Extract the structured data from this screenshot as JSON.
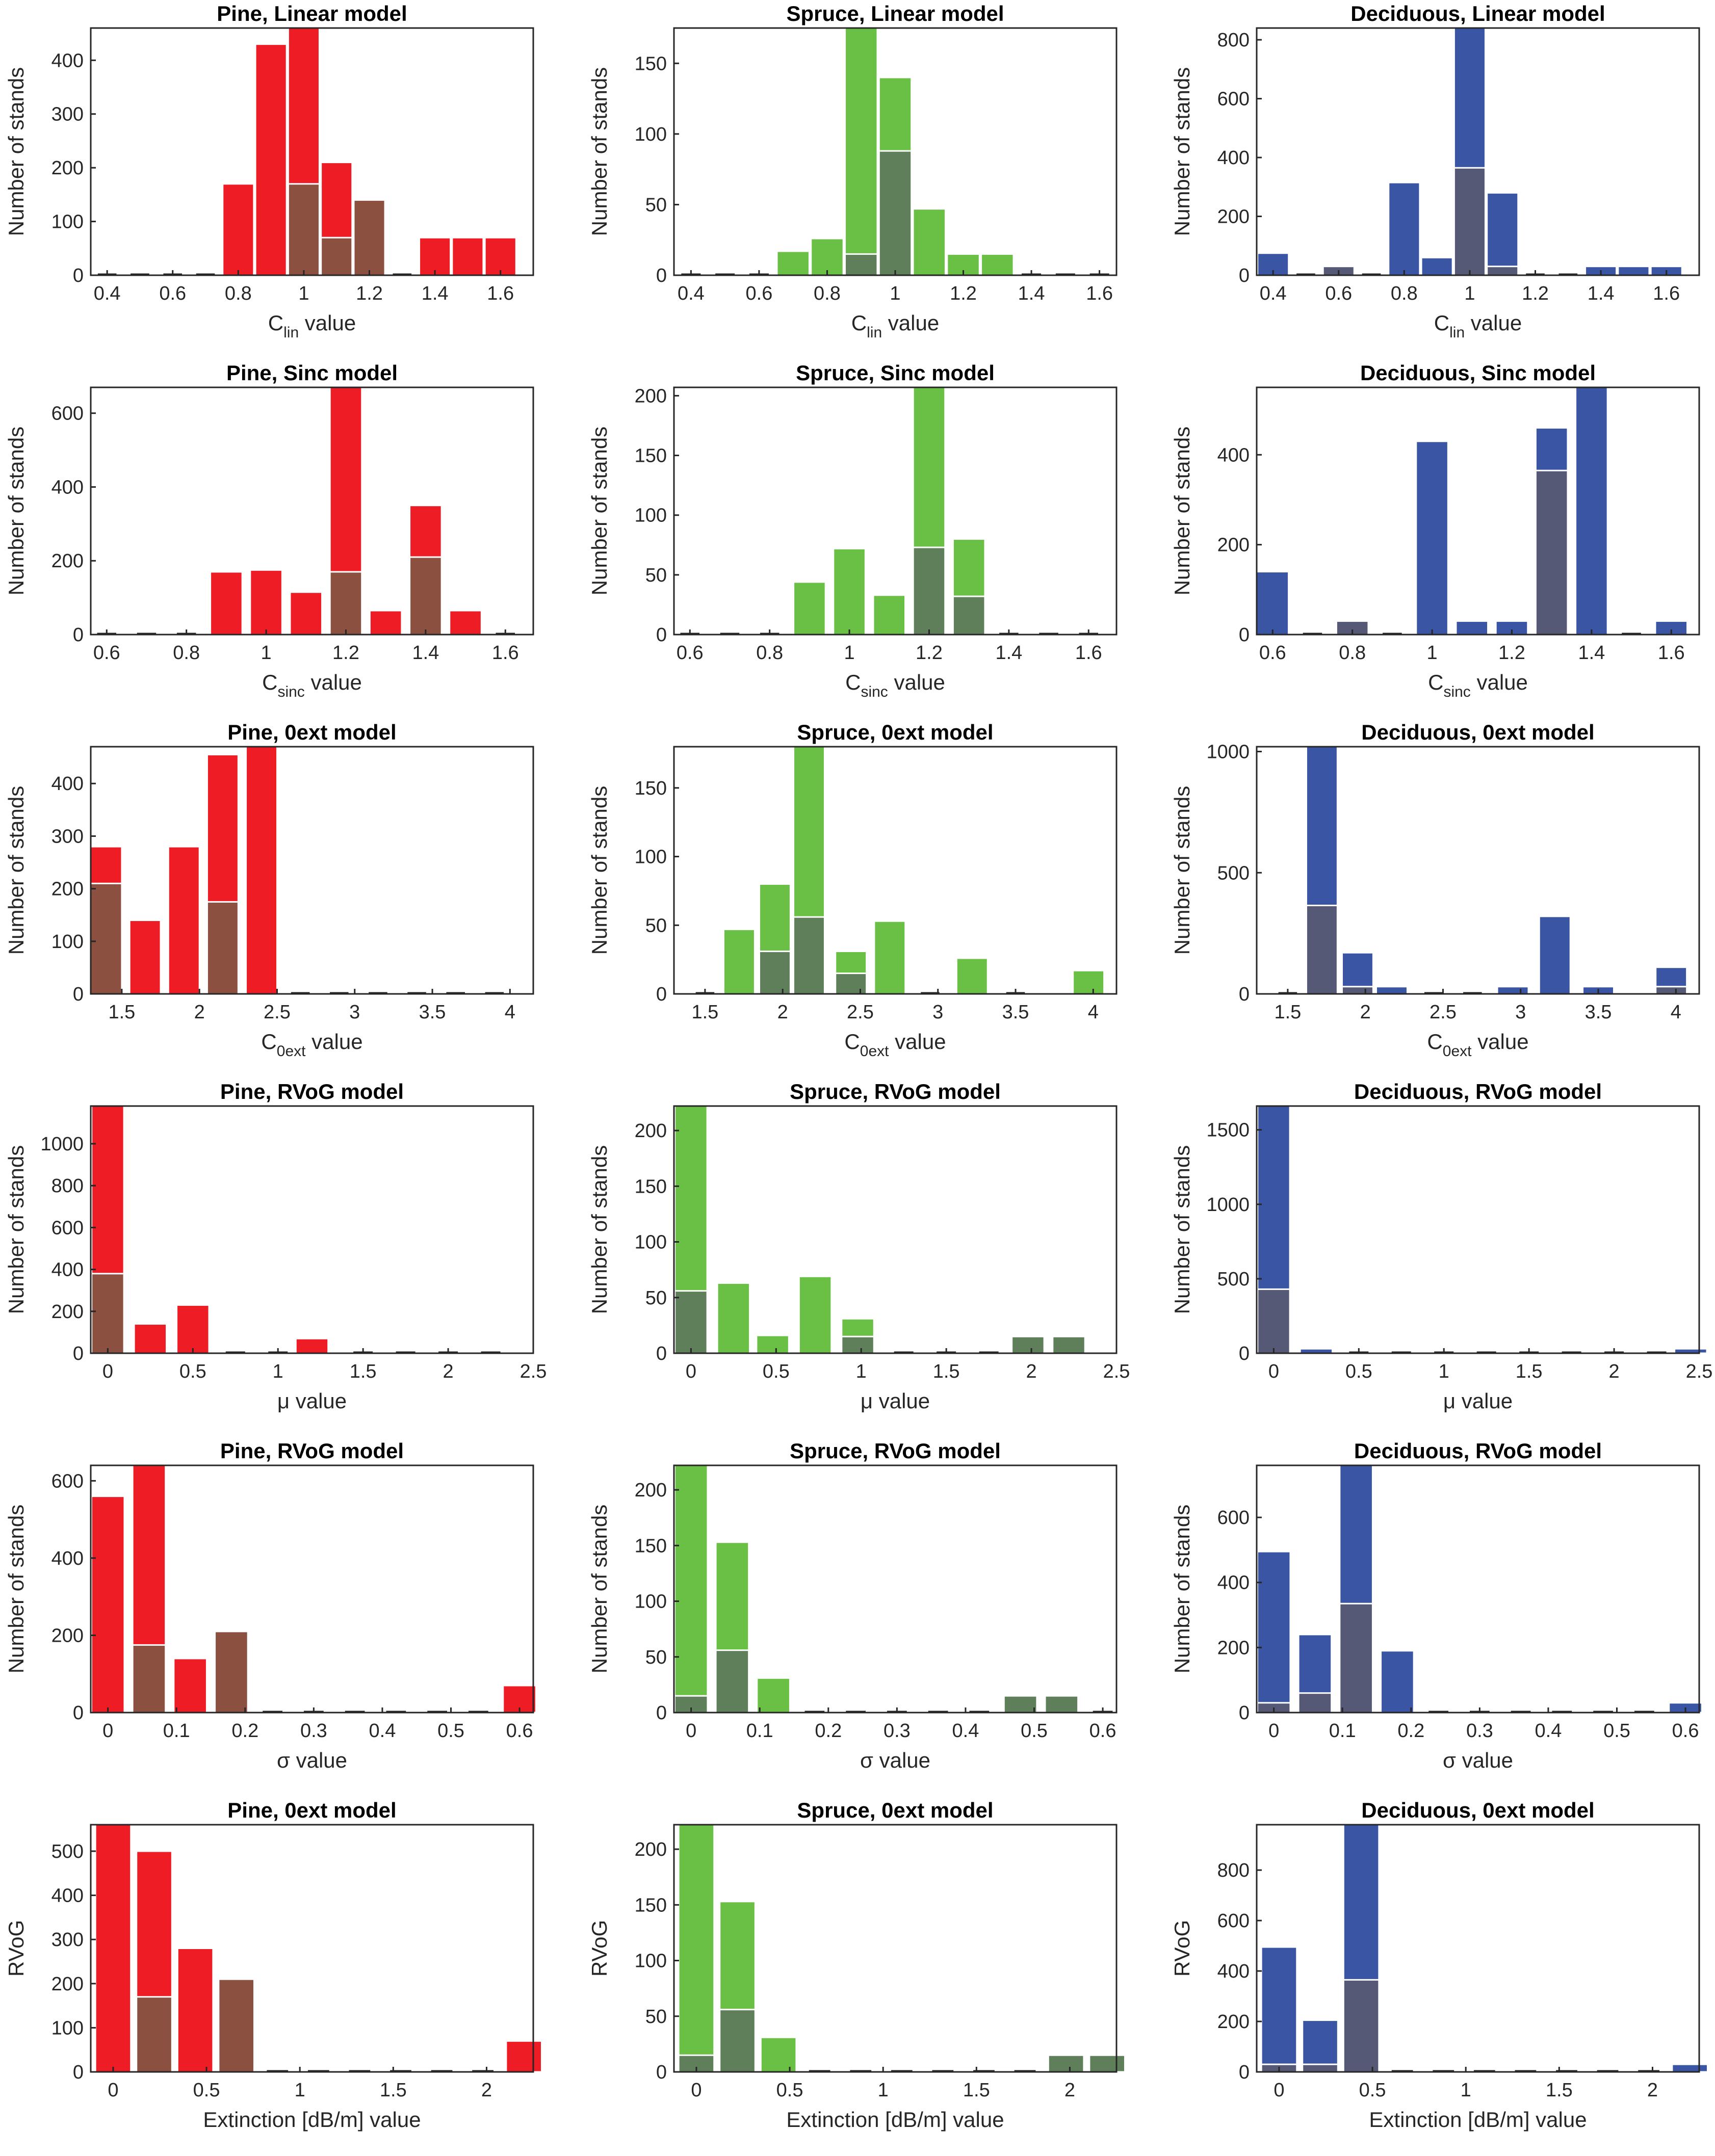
{
  "chart_data": [
    {
      "type": "bar",
      "title": "Pine, Linear model",
      "xlabel": "C",
      "xlabel_sub": "lin",
      "xlabel_suffix": " value",
      "ylabel": "Number of stands",
      "xlim": [
        0.35,
        1.7
      ],
      "ylim": [
        0,
        460
      ],
      "xticks": [
        0.4,
        0.6,
        0.8,
        1,
        1.2,
        1.4,
        1.6
      ],
      "yticks": [
        0,
        100,
        200,
        300,
        400
      ],
      "colors": {
        "total": "#ee1c25",
        "subset": "#8b5040"
      },
      "bar_width": 0.095,
      "x": [
        0.4,
        0.5,
        0.6,
        0.7,
        0.8,
        0.9,
        1.0,
        1.1,
        1.2,
        1.3,
        1.4,
        1.5,
        1.6
      ],
      "total": [
        0,
        0,
        0,
        0,
        170,
        430,
        460,
        210,
        0,
        0,
        70,
        70,
        70
      ],
      "subset": [
        0,
        0,
        0,
        0,
        0,
        0,
        170,
        70,
        140,
        0,
        0,
        0,
        0
      ]
    },
    {
      "type": "bar",
      "title": "Spruce, Linear model",
      "xlabel": "C",
      "xlabel_sub": "lin",
      "xlabel_suffix": " value",
      "ylabel": "Number of stands",
      "xlim": [
        0.35,
        1.65
      ],
      "ylim": [
        0,
        175
      ],
      "xticks": [
        0.4,
        0.6,
        0.8,
        1,
        1.2,
        1.4,
        1.6
      ],
      "yticks": [
        0,
        50,
        100,
        150
      ],
      "colors": {
        "total": "#6abf45",
        "subset": "#5e7f5a"
      },
      "bar_width": 0.095,
      "x": [
        0.4,
        0.5,
        0.6,
        0.7,
        0.8,
        0.9,
        1.0,
        1.1,
        1.2,
        1.3,
        1.4,
        1.5,
        1.6
      ],
      "total": [
        0,
        0,
        0,
        17,
        26,
        175,
        140,
        47,
        15,
        15,
        0,
        0,
        0
      ],
      "subset": [
        0,
        0,
        0,
        0,
        0,
        15,
        88,
        0,
        0,
        0,
        0,
        0,
        0
      ]
    },
    {
      "type": "bar",
      "title": "Deciduous, Linear model",
      "xlabel": "C",
      "xlabel_sub": "lin",
      "xlabel_suffix": " value",
      "ylabel": "Number of stands",
      "xlim": [
        0.35,
        1.7
      ],
      "ylim": [
        0,
        840
      ],
      "xticks": [
        0.4,
        0.6,
        0.8,
        1,
        1.2,
        1.4,
        1.6
      ],
      "yticks": [
        0,
        200,
        400,
        600,
        800
      ],
      "colors": {
        "total": "#3a55a4",
        "subset": "#555976"
      },
      "bar_width": 0.095,
      "x": [
        0.4,
        0.5,
        0.6,
        0.7,
        0.8,
        0.9,
        1.0,
        1.1,
        1.2,
        1.3,
        1.4,
        1.5,
        1.6
      ],
      "total": [
        75,
        0,
        0,
        0,
        315,
        60,
        840,
        280,
        0,
        0,
        30,
        30,
        30
      ],
      "subset": [
        0,
        0,
        30,
        0,
        0,
        0,
        365,
        30,
        0,
        0,
        0,
        0,
        0
      ]
    },
    {
      "type": "bar",
      "title": "Pine, Sinc model",
      "xlabel": "C",
      "xlabel_sub": "sinc",
      "xlabel_suffix": " value",
      "ylabel": "Number of stands",
      "xlim": [
        0.56,
        1.67
      ],
      "ylim": [
        0,
        670
      ],
      "xticks": [
        0.6,
        0.8,
        1,
        1.2,
        1.4,
        1.6
      ],
      "yticks": [
        0,
        200,
        400,
        600
      ],
      "colors": {
        "total": "#ee1c25",
        "subset": "#8b5040"
      },
      "bar_width": 0.08,
      "x": [
        0.6,
        0.7,
        0.8,
        0.9,
        1.0,
        1.1,
        1.2,
        1.3,
        1.4,
        1.5,
        1.6
      ],
      "total": [
        0,
        0,
        0,
        170,
        175,
        115,
        670,
        65,
        350,
        65,
        0
      ],
      "subset": [
        0,
        0,
        0,
        0,
        0,
        0,
        170,
        0,
        210,
        0,
        0
      ]
    },
    {
      "type": "bar",
      "title": "Spruce, Sinc model",
      "xlabel": "C",
      "xlabel_sub": "sinc",
      "xlabel_suffix": " value",
      "ylabel": "Number of stands",
      "xlim": [
        0.56,
        1.67
      ],
      "ylim": [
        0,
        207
      ],
      "xticks": [
        0.6,
        0.8,
        1,
        1.2,
        1.4,
        1.6
      ],
      "yticks": [
        0,
        50,
        100,
        150,
        200
      ],
      "colors": {
        "total": "#6abf45",
        "subset": "#5e7f5a"
      },
      "bar_width": 0.08,
      "x": [
        0.6,
        0.7,
        0.8,
        0.9,
        1.0,
        1.1,
        1.2,
        1.3,
        1.4,
        1.5,
        1.6
      ],
      "total": [
        0,
        0,
        0,
        44,
        72,
        33,
        207,
        80,
        0,
        0,
        0
      ],
      "subset": [
        0,
        0,
        0,
        0,
        0,
        0,
        73,
        32,
        0,
        0,
        0
      ]
    },
    {
      "type": "bar",
      "title": "Deciduous, Sinc model",
      "xlabel": "C",
      "xlabel_sub": "sinc",
      "xlabel_suffix": " value",
      "ylabel": "Number of stands",
      "xlim": [
        0.56,
        1.67
      ],
      "ylim": [
        0,
        550
      ],
      "xticks": [
        0.6,
        0.8,
        1,
        1.2,
        1.4,
        1.6
      ],
      "yticks": [
        0,
        200,
        400
      ],
      "colors": {
        "total": "#3a55a4",
        "subset": "#555976"
      },
      "bar_width": 0.08,
      "x": [
        0.6,
        0.7,
        0.8,
        0.9,
        1.0,
        1.1,
        1.2,
        1.3,
        1.4,
        1.5,
        1.6
      ],
      "total": [
        140,
        0,
        0,
        0,
        430,
        30,
        30,
        460,
        550,
        0,
        30
      ],
      "subset": [
        0,
        0,
        30,
        0,
        0,
        0,
        0,
        365,
        0,
        0,
        0
      ]
    },
    {
      "type": "bar",
      "title": "Pine, 0ext model",
      "xlabel": "C",
      "xlabel_sub": "0ext",
      "xlabel_suffix": " value",
      "ylabel": "Number of stands",
      "xlim": [
        1.3,
        4.15
      ],
      "ylim": [
        0,
        470
      ],
      "xticks": [
        1.5,
        2,
        2.5,
        3,
        3.5,
        4
      ],
      "yticks": [
        0,
        100,
        200,
        300,
        400
      ],
      "colors": {
        "total": "#ee1c25",
        "subset": "#8b5040"
      },
      "bar_width": 0.2,
      "x": [
        1.4,
        1.65,
        1.9,
        2.15,
        2.4,
        2.65,
        2.9,
        3.15,
        3.4,
        3.65,
        3.9
      ],
      "total": [
        280,
        140,
        280,
        455,
        470,
        0,
        0,
        0,
        0,
        0,
        0
      ],
      "subset": [
        210,
        0,
        0,
        175,
        0,
        0,
        0,
        0,
        0,
        0,
        0
      ]
    },
    {
      "type": "bar",
      "title": "Spruce, 0ext model",
      "xlabel": "C",
      "xlabel_sub": "0ext",
      "xlabel_suffix": " value",
      "ylabel": "Number of stands",
      "xlim": [
        1.3,
        4.15
      ],
      "ylim": [
        0,
        180
      ],
      "xticks": [
        1.5,
        2,
        2.5,
        3,
        3.5,
        4
      ],
      "yticks": [
        0,
        50,
        100,
        150
      ],
      "colors": {
        "total": "#6abf45",
        "subset": "#5e7f5a"
      },
      "bar_width": 0.2,
      "x": [
        1.5,
        1.72,
        1.95,
        2.17,
        2.44,
        2.69,
        2.95,
        3.22,
        3.5,
        3.97
      ],
      "total": [
        0,
        47,
        80,
        180,
        31,
        53,
        0,
        26,
        0,
        17
      ],
      "subset": [
        0,
        0,
        31,
        56,
        15,
        0,
        0,
        0,
        0,
        0
      ]
    },
    {
      "type": "bar",
      "title": "Deciduous, 0ext model",
      "xlabel": "C",
      "xlabel_sub": "0ext",
      "xlabel_suffix": " value",
      "ylabel": "Number of stands",
      "xlim": [
        1.3,
        4.15
      ],
      "ylim": [
        0,
        1020
      ],
      "xticks": [
        1.5,
        2,
        2.5,
        3,
        3.5,
        4
      ],
      "yticks": [
        0,
        500,
        1000
      ],
      "colors": {
        "total": "#3a55a4",
        "subset": "#555976"
      },
      "bar_width": 0.2,
      "x": [
        1.5,
        1.72,
        1.95,
        2.17,
        2.44,
        2.69,
        2.95,
        3.22,
        3.5,
        3.97
      ],
      "total": [
        0,
        1020,
        170,
        30,
        0,
        0,
        30,
        320,
        30,
        110
      ],
      "subset": [
        0,
        365,
        30,
        0,
        0,
        0,
        0,
        0,
        0,
        30
      ]
    },
    {
      "type": "bar",
      "title": "Pine, RVoG model",
      "xlabel": "μ",
      "xlabel_sub": "",
      "xlabel_suffix": " value",
      "ylabel": "Number of stands",
      "xlim": [
        -0.1,
        2.5
      ],
      "ylim": [
        0,
        1180
      ],
      "xticks": [
        0,
        0.5,
        1,
        1.5,
        2,
        2.5
      ],
      "yticks": [
        0,
        200,
        400,
        600,
        800,
        1000
      ],
      "colors": {
        "total": "#ee1c25",
        "subset": "#8b5040"
      },
      "bar_width": 0.19,
      "x": [
        0,
        0.25,
        0.5,
        0.75,
        1.0,
        1.2,
        1.5,
        1.75,
        2.0,
        2.25
      ],
      "total": [
        1180,
        140,
        230,
        0,
        0,
        70,
        0,
        0,
        0,
        0
      ],
      "subset": [
        380,
        0,
        0,
        0,
        0,
        0,
        0,
        0,
        0,
        0
      ]
    },
    {
      "type": "bar",
      "title": "Spruce, RVoG model",
      "xlabel": "μ",
      "xlabel_sub": "",
      "xlabel_suffix": " value",
      "ylabel": "Number of stands",
      "xlim": [
        -0.1,
        2.5
      ],
      "ylim": [
        0,
        222
      ],
      "xticks": [
        0,
        0.5,
        1,
        1.5,
        2,
        2.5
      ],
      "yticks": [
        0,
        50,
        100,
        150,
        200
      ],
      "colors": {
        "total": "#6abf45",
        "subset": "#5e7f5a"
      },
      "bar_width": 0.19,
      "x": [
        0,
        0.25,
        0.48,
        0.73,
        0.98,
        1.25,
        1.5,
        1.75,
        1.98,
        2.22
      ],
      "total": [
        222,
        63,
        16,
        69,
        31,
        0,
        0,
        0,
        15,
        15
      ],
      "subset": [
        56,
        0,
        0,
        0,
        15,
        0,
        0,
        0,
        15,
        15
      ]
    },
    {
      "type": "bar",
      "title": "Deciduous, RVoG model",
      "xlabel": "μ",
      "xlabel_sub": "",
      "xlabel_suffix": " value",
      "ylabel": "Number of stands",
      "xlim": [
        -0.1,
        2.5
      ],
      "ylim": [
        0,
        1660
      ],
      "xticks": [
        0,
        0.5,
        1,
        1.5,
        2,
        2.5
      ],
      "yticks": [
        0,
        500,
        1000,
        1500
      ],
      "colors": {
        "total": "#3a55a4",
        "subset": "#555976"
      },
      "bar_width": 0.19,
      "x": [
        0,
        0.25,
        0.5,
        0.75,
        1.0,
        1.25,
        1.5,
        1.75,
        2.0,
        2.25,
        2.45
      ],
      "total": [
        1660,
        30,
        0,
        0,
        0,
        0,
        0,
        0,
        0,
        0,
        30
      ],
      "subset": [
        430,
        0,
        0,
        0,
        0,
        0,
        0,
        0,
        0,
        0,
        0
      ]
    },
    {
      "type": "bar",
      "title": "Pine, RVoG model",
      "xlabel": "σ",
      "xlabel_sub": "",
      "xlabel_suffix": " value",
      "ylabel": "Number of stands",
      "xlim": [
        -0.025,
        0.62
      ],
      "ylim": [
        0,
        640
      ],
      "xticks": [
        0,
        0.1,
        0.2,
        0.3,
        0.4,
        0.5,
        0.6
      ],
      "yticks": [
        0,
        200,
        400,
        600
      ],
      "colors": {
        "total": "#ee1c25",
        "subset": "#8b5040"
      },
      "bar_width": 0.048,
      "x": [
        0,
        0.06,
        0.12,
        0.18,
        0.24,
        0.3,
        0.36,
        0.42,
        0.48,
        0.54,
        0.6
      ],
      "total": [
        560,
        640,
        140,
        210,
        0,
        0,
        0,
        0,
        0,
        0,
        70
      ],
      "subset": [
        0,
        175,
        0,
        210,
        0,
        0,
        0,
        0,
        0,
        0,
        0
      ]
    },
    {
      "type": "bar",
      "title": "Spruce, RVoG model",
      "xlabel": "σ",
      "xlabel_sub": "",
      "xlabel_suffix": " value",
      "ylabel": "Number of stands",
      "xlim": [
        -0.025,
        0.62
      ],
      "ylim": [
        0,
        222
      ],
      "xticks": [
        0,
        0.1,
        0.2,
        0.3,
        0.4,
        0.5,
        0.6
      ],
      "yticks": [
        0,
        50,
        100,
        150,
        200
      ],
      "colors": {
        "total": "#6abf45",
        "subset": "#5e7f5a"
      },
      "bar_width": 0.048,
      "x": [
        0,
        0.06,
        0.12,
        0.18,
        0.24,
        0.3,
        0.36,
        0.42,
        0.48,
        0.54,
        0.6
      ],
      "total": [
        222,
        153,
        31,
        0,
        0,
        0,
        0,
        0,
        15,
        15,
        0
      ],
      "subset": [
        15,
        56,
        0,
        0,
        0,
        0,
        0,
        0,
        15,
        15,
        0
      ]
    },
    {
      "type": "bar",
      "title": "Deciduous, RVoG model",
      "xlabel": "σ",
      "xlabel_sub": "",
      "xlabel_suffix": " value",
      "ylabel": "Number of stands",
      "xlim": [
        -0.025,
        0.62
      ],
      "ylim": [
        0,
        760
      ],
      "xticks": [
        0,
        0.1,
        0.2,
        0.3,
        0.4,
        0.5,
        0.6
      ],
      "yticks": [
        0,
        200,
        400,
        600
      ],
      "colors": {
        "total": "#3a55a4",
        "subset": "#555976"
      },
      "bar_width": 0.048,
      "x": [
        0,
        0.06,
        0.12,
        0.18,
        0.24,
        0.3,
        0.36,
        0.42,
        0.48,
        0.54,
        0.6
      ],
      "total": [
        495,
        240,
        760,
        190,
        0,
        0,
        0,
        0,
        0,
        0,
        30
      ],
      "subset": [
        30,
        60,
        335,
        0,
        0,
        0,
        0,
        0,
        0,
        0,
        0
      ]
    },
    {
      "type": "bar",
      "title": "Pine, 0ext model",
      "xlabel": "Extinction [dB/m]",
      "xlabel_sub": "",
      "xlabel_suffix": " value",
      "ylabel": "RVoG",
      "xlim": [
        -0.12,
        2.25
      ],
      "ylim": [
        0,
        560
      ],
      "xticks": [
        0,
        0.5,
        1,
        1.5,
        2
      ],
      "yticks": [
        0,
        100,
        200,
        300,
        400,
        500
      ],
      "colors": {
        "total": "#ee1c25",
        "subset": "#8b5040"
      },
      "bar_width": 0.19,
      "x": [
        0,
        0.22,
        0.44,
        0.66,
        0.88,
        1.1,
        1.32,
        1.54,
        1.76,
        1.98,
        2.2
      ],
      "total": [
        560,
        500,
        280,
        210,
        0,
        0,
        0,
        0,
        0,
        0,
        70
      ],
      "subset": [
        0,
        170,
        0,
        210,
        0,
        0,
        0,
        0,
        0,
        0,
        0
      ]
    },
    {
      "type": "bar",
      "title": "Spruce, 0ext model",
      "xlabel": "Extinction [dB/m]",
      "xlabel_sub": "",
      "xlabel_suffix": " value",
      "ylabel": "RVoG",
      "xlim": [
        -0.12,
        2.25
      ],
      "ylim": [
        0,
        222
      ],
      "xticks": [
        0,
        0.5,
        1,
        1.5,
        2
      ],
      "yticks": [
        0,
        50,
        100,
        150,
        200
      ],
      "colors": {
        "total": "#6abf45",
        "subset": "#5e7f5a"
      },
      "bar_width": 0.19,
      "x": [
        0,
        0.22,
        0.44,
        0.66,
        0.88,
        1.1,
        1.32,
        1.54,
        1.76,
        1.98,
        2.2
      ],
      "total": [
        222,
        153,
        31,
        0,
        0,
        0,
        0,
        0,
        0,
        15,
        15
      ],
      "subset": [
        15,
        56,
        0,
        0,
        0,
        0,
        0,
        0,
        0,
        15,
        15
      ]
    },
    {
      "type": "bar",
      "title": "Deciduous, 0ext model",
      "xlabel": "Extinction [dB/m]",
      "xlabel_sub": "",
      "xlabel_suffix": " value",
      "ylabel": "RVoG",
      "xlim": [
        -0.12,
        2.25
      ],
      "ylim": [
        0,
        980
      ],
      "xticks": [
        0,
        0.5,
        1,
        1.5,
        2
      ],
      "yticks": [
        0,
        200,
        400,
        600,
        800
      ],
      "colors": {
        "total": "#3a55a4",
        "subset": "#555976"
      },
      "bar_width": 0.19,
      "x": [
        0,
        0.22,
        0.44,
        0.66,
        0.88,
        1.1,
        1.32,
        1.54,
        1.76,
        1.98,
        2.2
      ],
      "total": [
        495,
        205,
        980,
        0,
        0,
        0,
        0,
        0,
        0,
        0,
        30
      ],
      "subset": [
        30,
        30,
        365,
        0,
        0,
        0,
        0,
        0,
        0,
        0,
        0
      ]
    }
  ]
}
